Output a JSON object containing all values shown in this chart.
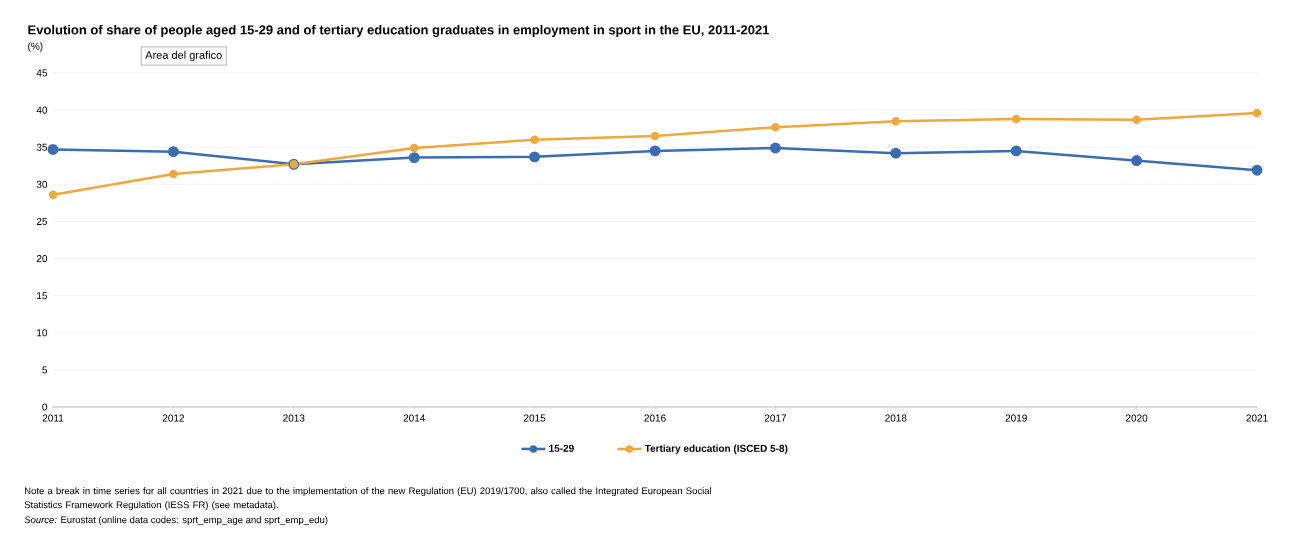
{
  "chart_data": {
    "type": "line",
    "title": "Evolution of share of people aged 15-29 and of tertiary education graduates in employment in sport in the EU, 2011-2021",
    "ylabel": "(%)",
    "x": [
      2011,
      2012,
      2013,
      2014,
      2015,
      2016,
      2017,
      2018,
      2019,
      2020,
      2021
    ],
    "series": [
      {
        "name": "15-29",
        "color": "#3a6db3",
        "values": [
          34.7,
          34.4,
          32.7,
          33.6,
          33.7,
          34.5,
          34.9,
          34.2,
          34.5,
          33.2,
          31.9
        ]
      },
      {
        "name": "Tertiary education (ISCED 5-8)",
        "color": "#f0a83c",
        "values": [
          28.6,
          31.4,
          32.7,
          34.9,
          36.0,
          36.5,
          37.7,
          38.5,
          38.8,
          38.7,
          39.6
        ]
      }
    ],
    "xlim": [
      2011,
      2021
    ],
    "xticks": [
      2011,
      2012,
      2013,
      2014,
      2015,
      2016,
      2017,
      2018,
      2019,
      2020,
      2021
    ],
    "ylim": [
      0,
      45
    ],
    "yticks": [
      0,
      5,
      10,
      15,
      20,
      25,
      30,
      35,
      40,
      45
    ],
    "grid": "y",
    "legend": "bottom",
    "marker": "circle",
    "annotations": [
      "Area del grafico",
      "Note a break in time series for all countries in 2021 due to the implementation of the new Regulation (EU) 2019/1700, also called the Integrated European Social Statistics Framework Regulation (IESS FR) (see metadata).",
      "*Source:* Eurostat (online data codes: sprt_emp_age and sprt_emp_edu)"
    ]
  }
}
